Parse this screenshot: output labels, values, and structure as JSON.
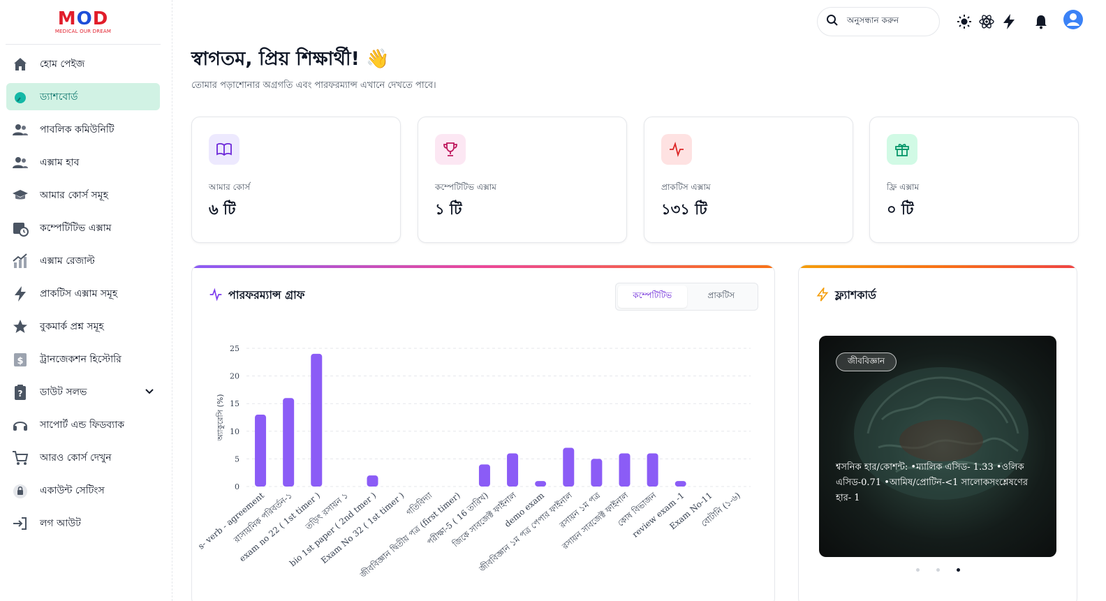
{
  "brand": {
    "name_m": "M",
    "name_o": "O",
    "name_d": "D",
    "tagline": "MEDICAL OUR DREAM"
  },
  "sidebar": {
    "items": [
      {
        "label": "হোম পেইজ",
        "icon": "home-icon"
      },
      {
        "label": "ড্যাশবোর্ড",
        "icon": "dashboard-icon"
      },
      {
        "label": "পাবলিক কমিউনিটি",
        "icon": "users-icon"
      },
      {
        "label": "এক্সাম হাব",
        "icon": "users-icon"
      },
      {
        "label": "আমার কোর্স সমূহ",
        "icon": "graduation-cap-icon"
      },
      {
        "label": "কম্পেটিটিভ এক্সাম",
        "icon": "calendar-clock-icon"
      },
      {
        "label": "এক্সাম রেজাল্ট",
        "icon": "chart-up-icon"
      },
      {
        "label": "প্রাকটিস এক্সাম সমূহ",
        "icon": "bolt-icon"
      },
      {
        "label": "বুকমার্ক প্রশ্ন সমূহ",
        "icon": "star-icon"
      },
      {
        "label": "ট্রানজেকশন হিস্টোরি",
        "icon": "dollar-doc-icon"
      },
      {
        "label": "ডাউট সলভ",
        "icon": "question-clipboard-icon"
      },
      {
        "label": "সাপোর্ট এন্ড ফিডব্যাক",
        "icon": "headset-icon"
      },
      {
        "label": "আরও কোর্স দেখুন",
        "icon": "cart-icon"
      },
      {
        "label": "একাউন্ট সেটিংস",
        "icon": "lock-icon"
      },
      {
        "label": "লগ আউট",
        "icon": "logout-icon"
      }
    ]
  },
  "header": {
    "search_label": "অনুসন্ধান করুন"
  },
  "welcome": {
    "title": "স্বাগতম, প্রিয় শিক্ষার্থী! 👋",
    "subtitle": "তোমার পড়াশোনার অগ্রগতি এবং পারফরম্যান্স এখানে দেখতে পাবে।"
  },
  "stats": [
    {
      "label": "আমার কোর্স",
      "value": "৬ টি",
      "color": "#6d28d9",
      "bg": "#ede9fe"
    },
    {
      "label": "কম্পেটিটিভ এক্সাম",
      "value": "১ টি",
      "color": "#be185d",
      "bg": "#fce7f3"
    },
    {
      "label": "প্রাকটিস এক্সাম",
      "value": "১৩১ টি",
      "color": "#dc2626",
      "bg": "#fee2e2"
    },
    {
      "label": "ফ্রি এক্সাম",
      "value": "০ টি",
      "color": "#059669",
      "bg": "#d1fae5"
    }
  ],
  "performance": {
    "title": "পারফরম্যান্স গ্রাফ",
    "tabs": [
      "কম্পেটিটিভ",
      "প্রাকটিস"
    ],
    "active_tab": "কম্পেটিটিভ"
  },
  "chart_data": {
    "type": "bar",
    "title": "পারফরম্যান্স গ্রাফ",
    "xlabel": "",
    "ylabel": "অ্যাকুরেসি (%)",
    "ylim": [
      0,
      25
    ],
    "yticks": [
      0,
      5,
      10,
      15,
      20,
      25
    ],
    "bar_color": "#8b5cf6",
    "categories": [
      "s- verb - agreement",
      "রাসায়নিক পরিবর্তন-১",
      "exam no 22 ( 1st timer )",
      "তড়িৎ রসায়ন ১",
      "bio 1st paper ( 2nd tmer )",
      "Exam No 32 ( 1st timer )",
      "গতিবিদ্যা",
      "জীববিজ্ঞান দ্বিতীয় পত্র (first timer)",
      "পরীক্ষা-5 ( 16 তারিখ)",
      "জিকে সাবজেক্ট ফাইনাল",
      "demo exam",
      "জীববিজ্ঞান ১ম পত্র পেপার ফাইনাল",
      "রসায়ন ১ম পত্র",
      "রসায়ন সাবজেক্ট ফাইনাল",
      "কোষ বিভাজন",
      "review exam -1",
      "Exam No-11",
      "বোটানি (১-৬)"
    ],
    "values": [
      13,
      16,
      24,
      0,
      2,
      0,
      0,
      0,
      4,
      6,
      1,
      7,
      5,
      6,
      6,
      1,
      0,
      0
    ]
  },
  "flashcard": {
    "title": "ফ্ল্যাশকার্ড",
    "tag": "জীববিজ্ঞান",
    "text": "শ্বসনিক হার/কোশন্ট: •ম্যালিক এসিড- 1.33 •ওলিক এসিড-0.71 •আমিষ/প্রোটিন-<1 সালোকসংশ্লেষণের হার- 1",
    "pages": 3,
    "active_page": 3
  }
}
